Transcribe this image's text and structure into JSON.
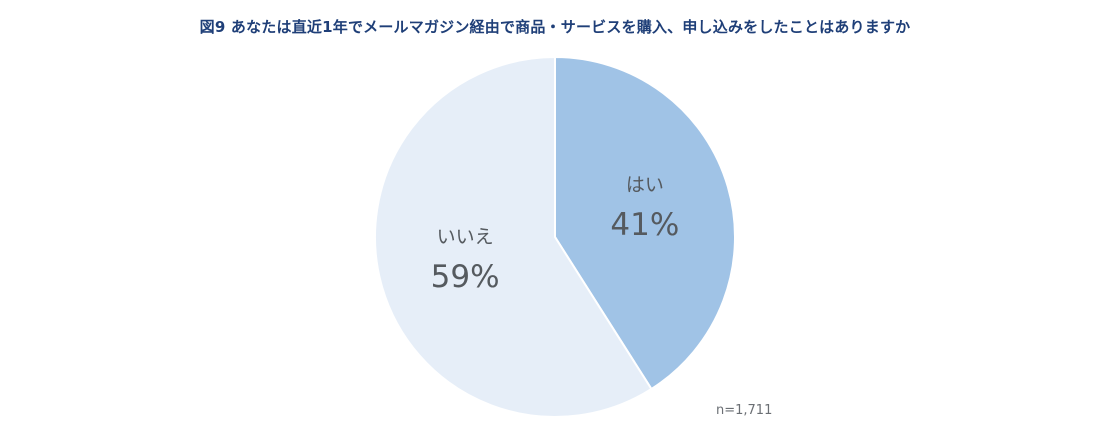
{
  "title": "図9  あなたは直近1年でメールマガジン経由で商品・サービスを購入、申し込みをしたことはありますか",
  "note": "n=1,711",
  "chart_data": {
    "type": "pie",
    "title": "図9  あなたは直近1年でメールマガジン経由で商品・サービスを購入、申し込みをしたことはありますか",
    "slices": [
      {
        "label": "はい",
        "value": 41,
        "display": "41%",
        "color": "#a0c3e6"
      },
      {
        "label": "いいえ",
        "value": 59,
        "display": "59%",
        "color": "#e6eef8"
      }
    ],
    "start": "12 o'clock",
    "direction": "clockwise",
    "sample_size": "n=1,711"
  }
}
